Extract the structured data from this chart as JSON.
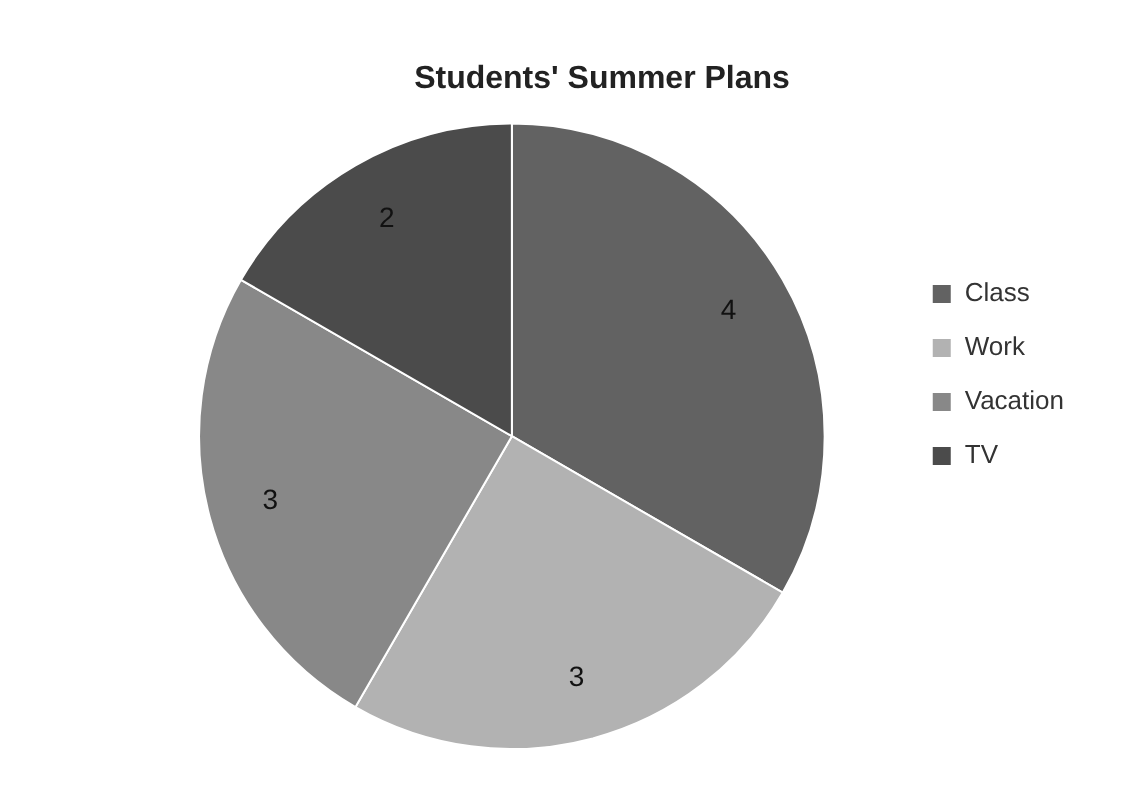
{
  "chart_data": {
    "type": "pie",
    "title": "Students' Summer Plans",
    "categories": [
      "Class",
      "Work",
      "Vacation",
      "TV"
    ],
    "values": [
      4,
      3,
      3,
      2
    ],
    "colors": [
      "#626262",
      "#b2b2b2",
      "#888888",
      "#4b4b4b"
    ],
    "data_labels": true,
    "legend": "right"
  }
}
